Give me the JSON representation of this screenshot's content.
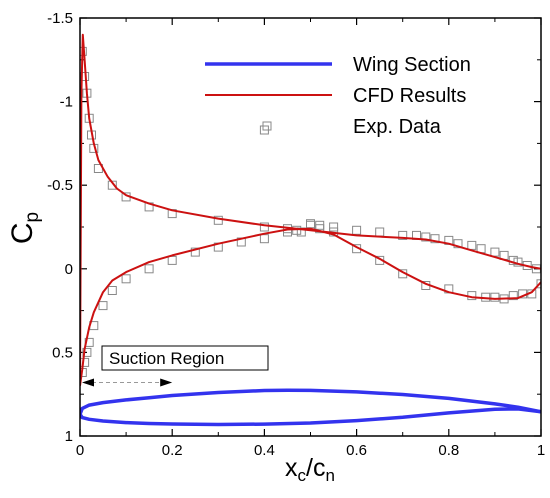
{
  "chart_data": {
    "type": "line",
    "xlabel": {
      "main": "x",
      "sub1": "c",
      "mid": "/c",
      "sub2": "n"
    },
    "ylabel": {
      "main": "C",
      "sub": "p"
    },
    "xlim": [
      0,
      1
    ],
    "ylim": [
      1,
      -1.5
    ],
    "y_reversed": true,
    "x_ticks": [
      "0",
      "0.2",
      "0.4",
      "0.6",
      "0.8",
      "1"
    ],
    "x_tick_values": [
      0,
      0.2,
      0.4,
      0.6,
      0.8,
      1
    ],
    "y_ticks": [
      "-1.5",
      "-1",
      "-0.5",
      "0",
      "0.5",
      "1"
    ],
    "y_tick_values": [
      -1.5,
      -1,
      -0.5,
      0,
      0.5,
      1
    ],
    "legend_position": "top-right",
    "colors": {
      "wing": "#3333ee",
      "cfd": "#cc1111",
      "exp": "#888888"
    },
    "series": [
      {
        "name": "Wing Section",
        "kind": "line",
        "upper": {
          "x": [
            0,
            0.005,
            0.02,
            0.05,
            0.1,
            0.15,
            0.2,
            0.3,
            0.4,
            0.45,
            0.5,
            0.6,
            0.7,
            0.8,
            0.9,
            0.95,
            1
          ],
          "y": [
            0.87,
            0.835,
            0.815,
            0.8,
            0.784,
            0.771,
            0.758,
            0.74,
            0.728,
            0.726,
            0.727,
            0.736,
            0.752,
            0.775,
            0.808,
            0.828,
            0.855
          ]
        },
        "lower": {
          "x": [
            0,
            0.005,
            0.02,
            0.05,
            0.1,
            0.15,
            0.2,
            0.3,
            0.4,
            0.5,
            0.6,
            0.7,
            0.8,
            0.9,
            0.95,
            1
          ],
          "y": [
            0.87,
            0.89,
            0.9,
            0.91,
            0.92,
            0.925,
            0.928,
            0.931,
            0.929,
            0.922,
            0.908,
            0.888,
            0.862,
            0.84,
            0.838,
            0.855
          ]
        }
      },
      {
        "name": "CFD Results",
        "kind": "line",
        "upper": {
          "x": [
            0,
            0.003,
            0.006,
            0.01,
            0.015,
            0.02,
            0.03,
            0.04,
            0.06,
            0.08,
            0.1,
            0.15,
            0.2,
            0.3,
            0.4,
            0.5,
            0.6,
            0.7,
            0.75,
            0.8,
            0.85,
            0.9,
            0.95,
            0.98,
            1
          ],
          "y": [
            0.7,
            -1.05,
            -1.4,
            -1.25,
            -1.05,
            -0.9,
            -0.75,
            -0.65,
            -0.55,
            -0.48,
            -0.44,
            -0.39,
            -0.35,
            -0.3,
            -0.26,
            -0.23,
            -0.2,
            -0.185,
            -0.175,
            -0.15,
            -0.11,
            -0.07,
            -0.03,
            -0.01,
            0
          ]
        },
        "lower": {
          "x": [
            0,
            0.005,
            0.01,
            0.02,
            0.03,
            0.05,
            0.07,
            0.1,
            0.15,
            0.2,
            0.3,
            0.4,
            0.45,
            0.5,
            0.55,
            0.6,
            0.65,
            0.7,
            0.75,
            0.8,
            0.85,
            0.9,
            0.95,
            0.98,
            1
          ],
          "y": [
            0.7,
            0.6,
            0.48,
            0.35,
            0.26,
            0.14,
            0.07,
            0.02,
            -0.04,
            -0.08,
            -0.15,
            -0.21,
            -0.235,
            -0.24,
            -0.205,
            -0.13,
            -0.06,
            0.02,
            0.09,
            0.14,
            0.17,
            0.18,
            0.175,
            0.14,
            0.08
          ]
        }
      },
      {
        "name": "Exp. Data",
        "kind": "scatter",
        "x": [
          0.005,
          0.01,
          0.015,
          0.02,
          0.025,
          0.03,
          0.04,
          0.07,
          0.1,
          0.15,
          0.2,
          0.3,
          0.4,
          0.45,
          0.48,
          0.5,
          0.52,
          0.55,
          0.6,
          0.65,
          0.7,
          0.73,
          0.75,
          0.77,
          0.8,
          0.82,
          0.85,
          0.87,
          0.9,
          0.92,
          0.94,
          0.95,
          0.97,
          0.99,
          0.005,
          0.01,
          0.015,
          0.02,
          0.03,
          0.05,
          0.07,
          0.1,
          0.15,
          0.2,
          0.25,
          0.3,
          0.35,
          0.4,
          0.45,
          0.47,
          0.5,
          0.52,
          0.55,
          0.6,
          0.65,
          0.7,
          0.75,
          0.8,
          0.85,
          0.88,
          0.9,
          0.92,
          0.94,
          0.96,
          0.98,
          1.0,
          0.4
        ],
        "y": [
          -1.3,
          -1.15,
          -1.05,
          -0.9,
          -0.8,
          -0.72,
          -0.6,
          -0.5,
          -0.43,
          -0.37,
          -0.33,
          -0.29,
          -0.25,
          -0.24,
          -0.22,
          -0.27,
          -0.26,
          -0.25,
          -0.23,
          -0.22,
          -0.2,
          -0.2,
          -0.19,
          -0.18,
          -0.17,
          -0.15,
          -0.14,
          -0.12,
          -0.1,
          -0.08,
          -0.05,
          -0.04,
          -0.02,
          0.0,
          0.62,
          0.56,
          0.5,
          0.44,
          0.34,
          0.22,
          0.13,
          0.06,
          0.0,
          -0.05,
          -0.1,
          -0.13,
          -0.16,
          -0.18,
          -0.22,
          -0.23,
          -0.26,
          -0.24,
          -0.22,
          -0.12,
          -0.05,
          0.03,
          0.1,
          0.12,
          0.16,
          0.17,
          0.17,
          0.18,
          0.16,
          0.15,
          0.15,
          0.09,
          -0.83
        ]
      }
    ],
    "annotation": {
      "text": "Suction Region",
      "arrow_x": [
        0,
        0.2
      ],
      "arrow_y": 0.68
    }
  }
}
